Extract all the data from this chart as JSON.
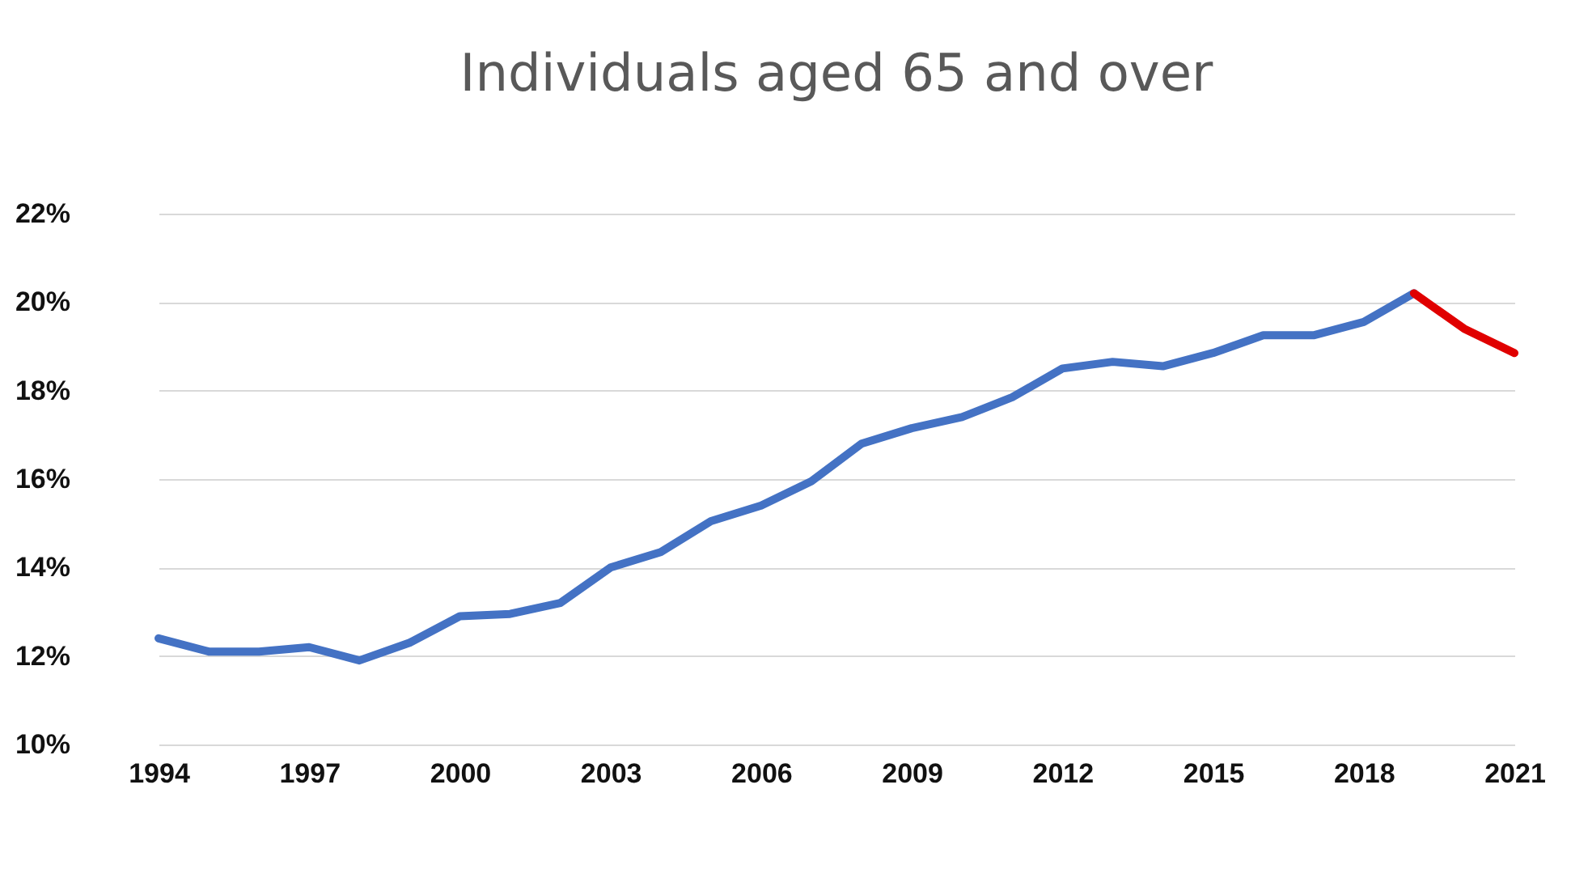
{
  "chart_data": {
    "type": "line",
    "title": "Individuals aged 65 and over",
    "xlim": [
      1994,
      2021
    ],
    "xticks": [
      1994,
      1997,
      2000,
      2003,
      2006,
      2009,
      2012,
      2015,
      2018,
      2021
    ],
    "ylim": [
      10,
      22
    ],
    "yticks": [
      {
        "value": 10,
        "label": "10%"
      },
      {
        "value": 12,
        "label": "12%"
      },
      {
        "value": 14,
        "label": "14%"
      },
      {
        "value": 16,
        "label": "16%"
      },
      {
        "value": 18,
        "label": "18%"
      },
      {
        "value": 20,
        "label": "20%"
      },
      {
        "value": 22,
        "label": "22%"
      }
    ],
    "grid": "y",
    "marker": "none",
    "line_style": "solid",
    "series": [
      {
        "color": "#4472c4",
        "x": [
          1994,
          1995,
          1996,
          1997,
          1998,
          1999,
          2000,
          2001,
          2002,
          2003,
          2004,
          2005,
          2006,
          2007,
          2008,
          2009,
          2010,
          2011,
          2012,
          2013,
          2014,
          2015,
          2016,
          2017,
          2018,
          2019
        ],
        "values": [
          12.4,
          12.1,
          12.1,
          12.2,
          11.9,
          12.3,
          12.9,
          12.95,
          13.2,
          14.0,
          14.35,
          15.05,
          15.4,
          15.95,
          16.8,
          17.15,
          17.4,
          17.85,
          18.5,
          18.65,
          18.55,
          18.85,
          19.25,
          19.25,
          19.55,
          20.2
        ]
      },
      {
        "color": "#e00000",
        "x": [
          2019,
          2020,
          2021
        ],
        "values": [
          20.2,
          19.4,
          18.85
        ]
      }
    ]
  }
}
